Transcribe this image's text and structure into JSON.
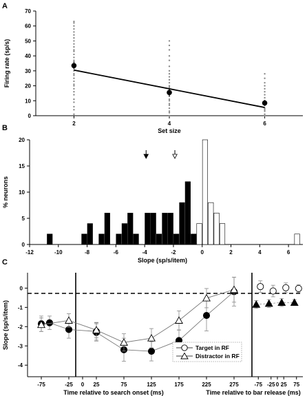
{
  "chart_data": [
    {
      "panel": "A",
      "type": "scatter",
      "xlabel": "Set size",
      "ylabel": "Firing rate (sp/s)",
      "xticks": [
        2,
        4,
        6
      ],
      "yticks": [
        0,
        10,
        20,
        30,
        40,
        50,
        60,
        70
      ],
      "xlim": [
        1.2,
        6.8
      ],
      "ylim": [
        0,
        70
      ],
      "grid": false,
      "points": [
        {
          "x": 2,
          "y": [
            1,
            4,
            6,
            9,
            11,
            14,
            16,
            18,
            20,
            21,
            23,
            25,
            27,
            28,
            30,
            32,
            34,
            36,
            37,
            39,
            41,
            43,
            44,
            46,
            48,
            50,
            52,
            54,
            56,
            58,
            60,
            62,
            63
          ]
        },
        {
          "x": 4,
          "y": [
            0,
            2,
            3,
            5,
            7,
            8,
            10,
            11,
            13,
            14,
            16,
            17,
            19,
            20,
            22,
            24,
            26,
            28,
            30,
            33,
            37,
            40,
            44,
            47,
            50
          ]
        },
        {
          "x": 6,
          "y": [
            0,
            1,
            3,
            4,
            5,
            7,
            8,
            10,
            12,
            14,
            16,
            18,
            20,
            22,
            25,
            28
          ]
        }
      ],
      "means": [
        {
          "x": 2,
          "y": 33.5,
          "err": 2.5
        },
        {
          "x": 4,
          "y": 15.5,
          "err": 2.5
        },
        {
          "x": 6,
          "y": 8.5,
          "err": 2.0
        }
      ],
      "fit_line": {
        "x": [
          2,
          6
        ],
        "y": [
          30.5,
          5.5
        ]
      }
    },
    {
      "panel": "B",
      "type": "bar",
      "xlabel": "Slope (sp/s/item)",
      "ylabel": "% neurons",
      "xticks": [
        -12,
        -10,
        -8,
        -6,
        -4,
        -2,
        0,
        2,
        4,
        6
      ],
      "yticks": [
        0,
        5,
        10,
        15,
        20
      ],
      "xlim": [
        -12,
        7
      ],
      "ylim": [
        0,
        20
      ],
      "bin_width": 0.4,
      "series": [
        {
          "fill": "#000000",
          "bins": [
            {
              "x": -10.8,
              "y": 2
            },
            {
              "x": -8.4,
              "y": 2
            },
            {
              "x": -8.0,
              "y": 4
            },
            {
              "x": -7.2,
              "y": 2
            },
            {
              "x": -6.8,
              "y": 6
            },
            {
              "x": -6.0,
              "y": 2
            },
            {
              "x": -5.6,
              "y": 4
            },
            {
              "x": -5.2,
              "y": 6
            },
            {
              "x": -4.8,
              "y": 2
            },
            {
              "x": -4.0,
              "y": 6
            },
            {
              "x": -3.6,
              "y": 6
            },
            {
              "x": -3.2,
              "y": 2
            },
            {
              "x": -2.8,
              "y": 6
            },
            {
              "x": -2.4,
              "y": 6
            },
            {
              "x": -2.0,
              "y": 2
            },
            {
              "x": -1.6,
              "y": 8
            },
            {
              "x": -1.2,
              "y": 12
            },
            {
              "x": -0.8,
              "y": 2
            }
          ]
        },
        {
          "fill": "#ffffff",
          "bins": [
            {
              "x": -0.4,
              "y": 4
            },
            {
              "x": 0.0,
              "y": 20
            },
            {
              "x": 0.4,
              "y": 8
            },
            {
              "x": 0.8,
              "y": 6
            },
            {
              "x": 1.2,
              "y": 4
            },
            {
              "x": 6.4,
              "y": 2
            }
          ]
        }
      ],
      "arrows": [
        {
          "x": -3.9,
          "fill": "#000000"
        },
        {
          "x": -1.9,
          "fill": "#ffffff"
        }
      ]
    },
    {
      "panel": "C",
      "type": "line",
      "ylabel": "Slope (sp/s/item)",
      "yticks": [
        -4,
        -3,
        -2,
        -1,
        0
      ],
      "ylim": [
        -4.6,
        0.8
      ],
      "subplots": [
        {
          "xlabel": "Time relative to search onset (ms)",
          "xticks": [
            -75,
            -25,
            0,
            25,
            75,
            125,
            175,
            225,
            275
          ],
          "xlim": [
            -100,
            300
          ],
          "series": [
            {
              "name": "Target in RF",
              "marker": "circle-filled",
              "x": [
                -75,
                -60,
                -25,
                25,
                25,
                75,
                125,
                175,
                225,
                275
              ],
              "y": [
                -1.85,
                -1.8,
                -2.15,
                -2.25,
                -2.3,
                -3.2,
                -3.28,
                -2.72,
                -1.42,
                -0.18
              ],
              "err": [
                0.4,
                0.35,
                0.45,
                0.45,
                0.45,
                0.6,
                0.5,
                0.55,
                0.8,
                0.75
              ]
            },
            {
              "name": "Distractor in RF",
              "marker": "triangle",
              "x": [
                -75,
                -25,
                25,
                75,
                125,
                175,
                225,
                275
              ],
              "y": [
                -1.9,
                -1.68,
                -2.18,
                -2.82,
                -2.6,
                -1.68,
                -0.52,
                -0.08
              ],
              "err": [
                0.35,
                0.35,
                0.4,
                0.45,
                0.5,
                0.5,
                0.5,
                0.65
              ]
            }
          ]
        },
        {
          "xlabel": "Time relative to bar release (ms)",
          "xticks": [
            -75,
            -25,
            0,
            25,
            75
          ],
          "xlim": [
            -100,
            100
          ],
          "series": [
            {
              "name": "Target in RF",
              "marker": "circle-open",
              "x": [
                -75,
                -25,
                25,
                75
              ],
              "y": [
                0.08,
                -0.15,
                0.02,
                -0.02
              ],
              "err": [
                0.3,
                0.3,
                0.25,
                0.2
              ]
            },
            {
              "name": "Distractor in RF",
              "marker": "triangle-filled",
              "x": [
                -75,
                -25,
                25,
                75
              ],
              "y": [
                -0.85,
                -0.8,
                -0.75,
                -0.75
              ],
              "err": [
                0.2,
                0.2,
                0.2,
                0.15
              ]
            }
          ]
        }
      ],
      "legend": [
        "Target in RF",
        "Distractor in RF"
      ]
    }
  ],
  "labels": {
    "panel_a": "A",
    "panel_b": "B",
    "panel_c": "C",
    "a_xlabel": "Set size",
    "a_ylabel": "Firing rate (sp/s)",
    "b_xlabel": "Slope (sp/s/item)",
    "b_ylabel": "% neurons",
    "c_ylabel": "Slope (sp/s/item)",
    "c_xlabel_left": "Time relative to search onset (ms)",
    "c_xlabel_right": "Time relative to bar release (ms)",
    "legend_target": "Target in RF",
    "legend_distractor": "Distractor in RF"
  }
}
